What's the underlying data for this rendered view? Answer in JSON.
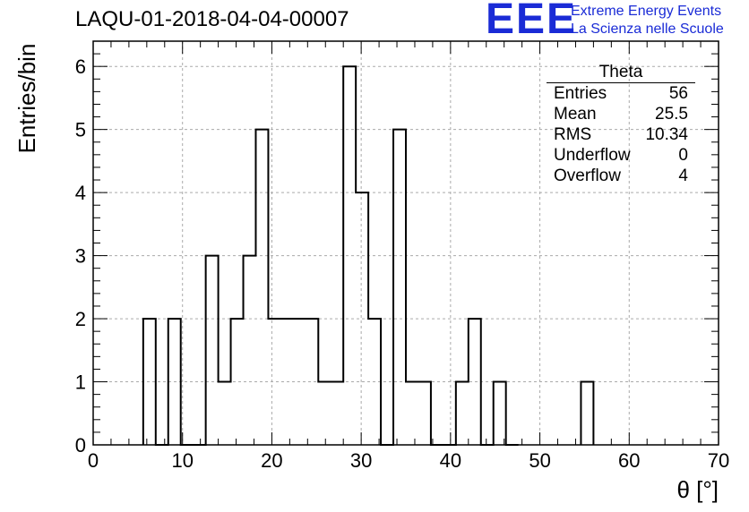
{
  "title": "LAQU-01-2018-04-04-00007",
  "brand": {
    "logo": "EEE",
    "line1": "Extreme Energy Events",
    "line2": "La Scienza nelle Scuole",
    "color": "#1a2bd6"
  },
  "stats": {
    "title": "Theta",
    "rows": [
      {
        "label": "Entries",
        "value": "56"
      },
      {
        "label": "Mean",
        "value": "25.5"
      },
      {
        "label": "RMS",
        "value": "10.34"
      },
      {
        "label": "Underflow",
        "value": "0"
      },
      {
        "label": "Overflow",
        "value": "4"
      }
    ]
  },
  "chart_data": {
    "type": "bar",
    "style": "step-histogram",
    "xlabel": "θ [°]",
    "ylabel": "Entries/bin",
    "xlim": [
      0,
      70
    ],
    "ylim": [
      0,
      6.4
    ],
    "bin_width": 1.4,
    "x_ticks": [
      0,
      10,
      20,
      30,
      40,
      50,
      60,
      70
    ],
    "y_ticks": [
      0,
      1,
      2,
      3,
      4,
      5,
      6
    ],
    "grid": true,
    "bin_edges_start": [
      5.6,
      7.0,
      8.4,
      9.8,
      11.2,
      12.6,
      14.0,
      15.4,
      16.8,
      18.2,
      19.6,
      21.0,
      22.4,
      23.8,
      25.2,
      26.6,
      28.0,
      29.4,
      30.8,
      32.2,
      33.6,
      35.0,
      36.4,
      37.8,
      39.2,
      40.6,
      42.0,
      43.4,
      44.8,
      46.2,
      54.6
    ],
    "values": [
      2,
      0,
      2,
      0,
      0,
      3,
      1,
      2,
      3,
      5,
      2,
      2,
      2,
      2,
      1,
      1,
      6,
      4,
      2,
      0,
      5,
      1,
      1,
      0,
      0,
      1,
      2,
      0,
      1,
      0,
      1
    ]
  }
}
